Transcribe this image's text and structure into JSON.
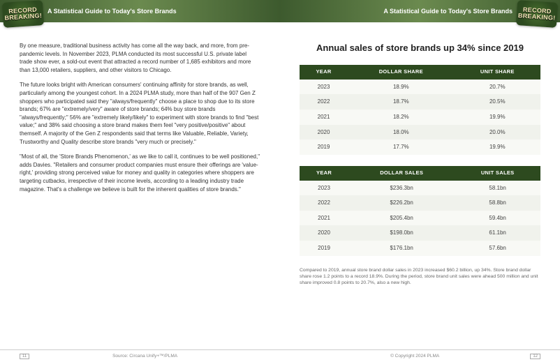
{
  "header": {
    "title": "A Statistical Guide to Today's Store Brands",
    "badge_line1": "RECORD",
    "badge_line2": "BREAKING!"
  },
  "left": {
    "paragraphs": [
      "By one measure, traditional business activity has come all the way back, and more, from pre-pandemic levels. In November 2023, PLMA conducted its most successful U.S. private label trade show ever, a sold-out event that attracted a record number of 1,685 exhibitors and more than 13,000 retailers, suppliers, and other visitors to Chicago.",
      "The future looks bright with American consumers' continuing affinity for store brands, as well, particularly among the youngest cohort. In a 2024 PLMA study, more than half of the 907 Gen Z shoppers who participated said they \"always/frequently\" choose a place to shop due to its store brands; 67% are \"extremely/very\" aware of store brands; 64% buy store brands \"always/frequently;\" 56% are \"extremely likely/likely\" to experiment with store brands to find \"best value;\" and 38% said choosing a store brand makes them feel \"very positive/positive\" about themself. A majority of the Gen Z respondents said that terms like Valuable, Reliable, Variety, Trustworthy and Quality describe store brands \"very much or precisely.\"",
      "\"Most of all, the 'Store Brands Phenomenon,' as we like to call it, continues to be well positioned,\" adds Davies. \"Retailers and consumer product companies must ensure their offerings are 'value-right,' providing strong perceived value for money and quality in categories where shoppers are targeting cutbacks, irrespective of their income levels, according to a leading industry trade magazine. That's a challenge we believe is built for the inherent qualities of store brands.\""
    ],
    "source": "Source: Circana Unify+™/PLMA",
    "pageno": "11"
  },
  "right": {
    "chart_title": "Annual sales of store brands up 34% since 2019",
    "table1": {
      "headers": [
        "YEAR",
        "DOLLAR SHARE",
        "UNIT SHARE"
      ],
      "rows": [
        [
          "2023",
          "18.9%",
          "20.7%"
        ],
        [
          "2022",
          "18.7%",
          "20.5%"
        ],
        [
          "2021",
          "18.2%",
          "19.9%"
        ],
        [
          "2020",
          "18.0%",
          "20.0%"
        ],
        [
          "2019",
          "17.7%",
          "19.9%"
        ]
      ]
    },
    "table2": {
      "headers": [
        "YEAR",
        "DOLLAR SALES",
        "UNIT SALES"
      ],
      "rows": [
        [
          "2023",
          "$236.3bn",
          "58.1bn"
        ],
        [
          "2022",
          "$226.2bn",
          "58.8bn"
        ],
        [
          "2021",
          "$205.4bn",
          "59.4bn"
        ],
        [
          "2020",
          "$198.0bn",
          "61.1bn"
        ],
        [
          "2019",
          "$176.1bn",
          "57.6bn"
        ]
      ]
    },
    "caption": "Compared to 2019, annual store brand dollar sales in 2023 increased $60.2 billion, up 34%. Store brand dollar share rose 1.2 points to a record 18.9%. During the period, store brand unit sales were ahead 500 million and unit share improved 0.8 points to 20.7%, also a new high.",
    "copyright": "© Copyright 2024 PLMA",
    "pageno": "12"
  }
}
